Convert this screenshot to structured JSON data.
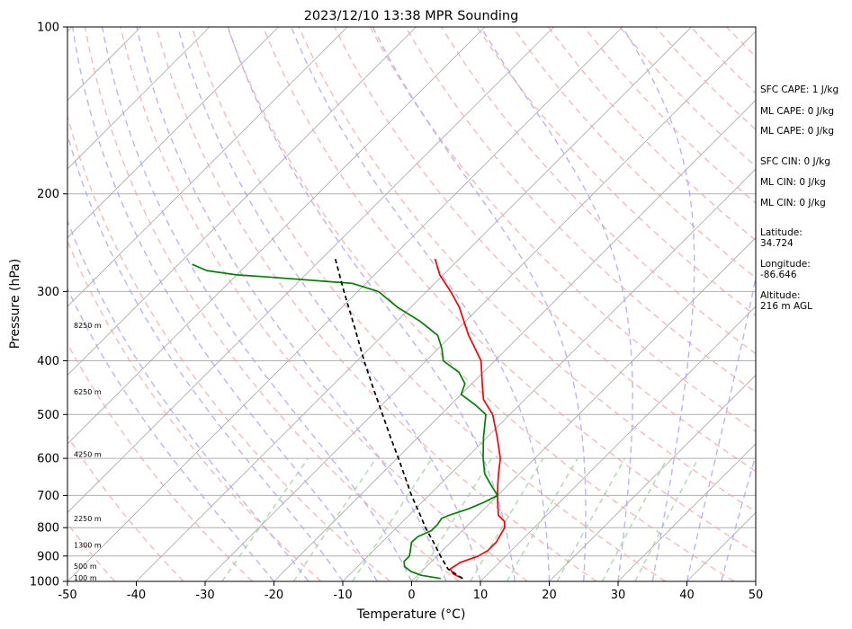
{
  "chart_data": {
    "type": "line",
    "title": "2023/12/10 13:38 MPR Sounding",
    "xlabel": "Temperature (°C)",
    "ylabel": "Pressure (hPa)",
    "xlim": [
      -50,
      50
    ],
    "ylim": [
      1000,
      100
    ],
    "y_scale": "log",
    "x_ticks": [
      -50,
      -40,
      -30,
      -20,
      -10,
      0,
      10,
      20,
      30,
      40,
      50
    ],
    "y_ticks": [
      1000,
      900,
      800,
      700,
      600,
      500,
      400,
      300,
      200,
      100
    ],
    "grid": "horizontal at pressure ticks, skewed isotherms",
    "background_lines": {
      "isotherm_color": "#a9a9a9",
      "dry_adiabat_color": "#f4a3a3",
      "moist_adiabat_color": "#a9a2f0",
      "mixing_ratio_color": "#9fd39f"
    },
    "height_labels": [
      {
        "text": "100 m",
        "p": 985
      },
      {
        "text": "500 m",
        "p": 938
      },
      {
        "text": "1300 m",
        "p": 860
      },
      {
        "text": "2250 m",
        "p": 770
      },
      {
        "text": "4250 m",
        "p": 590
      },
      {
        "text": "6250 m",
        "p": 455
      },
      {
        "text": "8250 m",
        "p": 345
      }
    ],
    "series": [
      {
        "color": "#ff0000",
        "style": "solid",
        "points": [
          {
            "p": 988,
            "t": 7.0
          },
          {
            "p": 970,
            "t": 5.0
          },
          {
            "p": 950,
            "t": 3.8
          },
          {
            "p": 925,
            "t": 4.3
          },
          {
            "p": 900,
            "t": 6.0
          },
          {
            "p": 880,
            "t": 6.6
          },
          {
            "p": 850,
            "t": 6.6
          },
          {
            "p": 800,
            "t": 5.7
          },
          {
            "p": 780,
            "t": 4.8
          },
          {
            "p": 760,
            "t": 3.0
          },
          {
            "p": 720,
            "t": 1.0
          },
          {
            "p": 700,
            "t": 0.0
          },
          {
            "p": 670,
            "t": -1.5
          },
          {
            "p": 640,
            "t": -3.0
          },
          {
            "p": 600,
            "t": -5.0
          },
          {
            "p": 550,
            "t": -8.5
          },
          {
            "p": 500,
            "t": -12.5
          },
          {
            "p": 470,
            "t": -16.0
          },
          {
            "p": 440,
            "t": -18.5
          },
          {
            "p": 400,
            "t": -22.0
          },
          {
            "p": 360,
            "t": -27.5
          },
          {
            "p": 320,
            "t": -33.0
          },
          {
            "p": 300,
            "t": -36.5
          },
          {
            "p": 280,
            "t": -40.5
          },
          {
            "p": 262,
            "t": -43.5
          }
        ]
      },
      {
        "color": "#008000",
        "style": "solid",
        "points": [
          {
            "p": 988,
            "t": 3.8
          },
          {
            "p": 975,
            "t": 0.5
          },
          {
            "p": 960,
            "t": -1.5
          },
          {
            "p": 940,
            "t": -3.2
          },
          {
            "p": 920,
            "t": -4.0
          },
          {
            "p": 900,
            "t": -4.0
          },
          {
            "p": 870,
            "t": -5.0
          },
          {
            "p": 850,
            "t": -5.7
          },
          {
            "p": 830,
            "t": -5.6
          },
          {
            "p": 810,
            "t": -4.5
          },
          {
            "p": 790,
            "t": -4.5
          },
          {
            "p": 770,
            "t": -4.8
          },
          {
            "p": 760,
            "t": -4.2
          },
          {
            "p": 740,
            "t": -2.3
          },
          {
            "p": 720,
            "t": -1.0
          },
          {
            "p": 700,
            "t": 0.0
          },
          {
            "p": 670,
            "t": -2.5
          },
          {
            "p": 640,
            "t": -5.0
          },
          {
            "p": 600,
            "t": -7.5
          },
          {
            "p": 550,
            "t": -10.5
          },
          {
            "p": 500,
            "t": -13.5
          },
          {
            "p": 480,
            "t": -16.5
          },
          {
            "p": 460,
            "t": -20.0
          },
          {
            "p": 440,
            "t": -21.0
          },
          {
            "p": 420,
            "t": -23.5
          },
          {
            "p": 400,
            "t": -27.5
          },
          {
            "p": 380,
            "t": -29.5
          },
          {
            "p": 360,
            "t": -32.0
          },
          {
            "p": 340,
            "t": -36.5
          },
          {
            "p": 320,
            "t": -42.0
          },
          {
            "p": 300,
            "t": -47.0
          },
          {
            "p": 290,
            "t": -52.0
          },
          {
            "p": 282,
            "t": -66.0
          },
          {
            "p": 280,
            "t": -70.0
          },
          {
            "p": 275,
            "t": -75.0
          },
          {
            "p": 268,
            "t": -78.0
          }
        ]
      },
      {
        "color": "#000000",
        "style": "dashed",
        "points": [
          {
            "p": 988,
            "t": 7.0
          },
          {
            "p": 950,
            "t": 3.5
          },
          {
            "p": 900,
            "t": 0.5
          },
          {
            "p": 850,
            "t": -2.5
          },
          {
            "p": 800,
            "t": -5.8
          },
          {
            "p": 750,
            "t": -9.0
          },
          {
            "p": 700,
            "t": -12.5
          },
          {
            "p": 650,
            "t": -16.0
          },
          {
            "p": 600,
            "t": -19.8
          },
          {
            "p": 550,
            "t": -24.0
          },
          {
            "p": 500,
            "t": -28.5
          },
          {
            "p": 450,
            "t": -33.5
          },
          {
            "p": 400,
            "t": -39.0
          },
          {
            "p": 350,
            "t": -45.0
          },
          {
            "p": 300,
            "t": -52.0
          },
          {
            "p": 262,
            "t": -58.0
          }
        ]
      }
    ],
    "annotations": [
      "SFC CAPE: 1 J/kg",
      "ML CAPE: 0 J/kg",
      "ML CAPE: 0 J/kg",
      "SFC CIN: 0 J/kg",
      "ML CIN: 0 J/kg",
      "ML CIN: 0 J/kg",
      "Latitude:",
      "34.724",
      "Longitude:",
      "-86.646",
      "Altitude:",
      "216 m AGL"
    ]
  }
}
